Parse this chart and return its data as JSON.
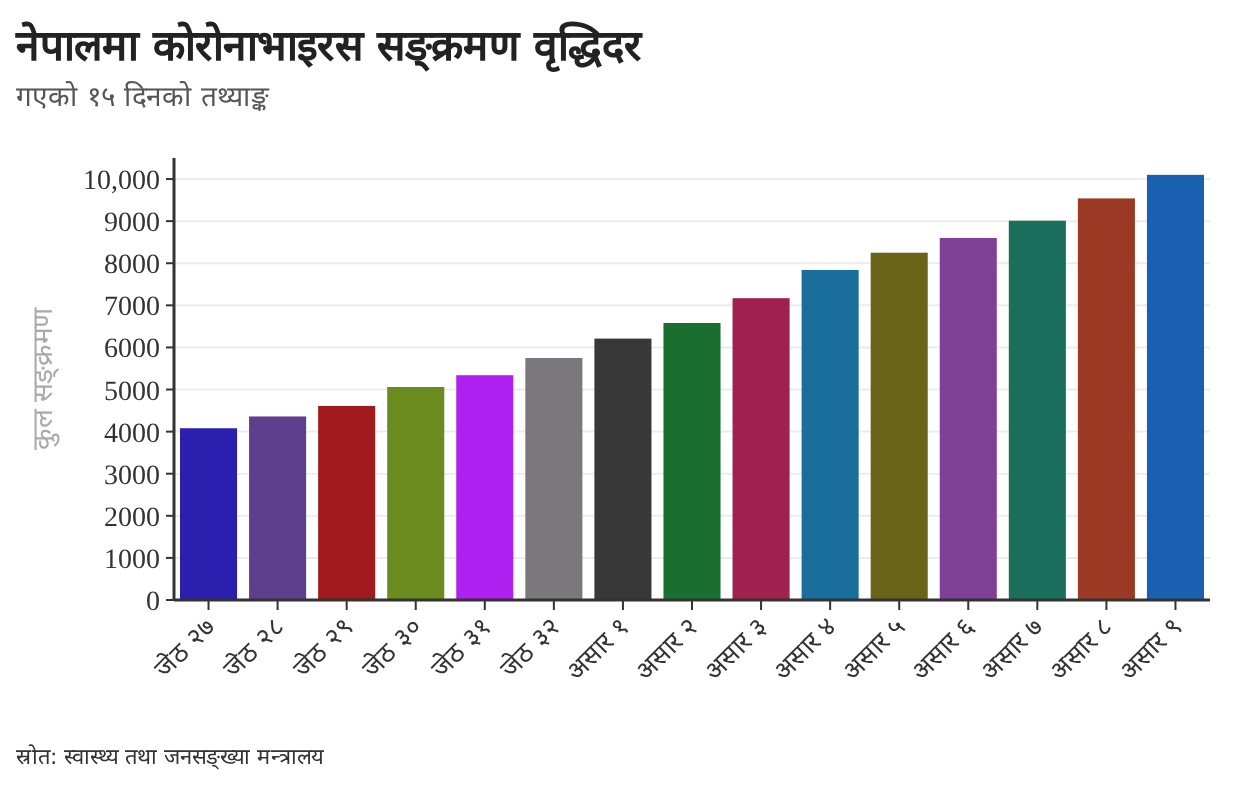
{
  "chart_data": {
    "type": "bar",
    "title": "नेपालमा कोरोनाभाइरस सङ्क्रमण वृद्धिदर",
    "subtitle": "गएको १५ दिनको तथ्याङ्क",
    "ylabel": "कुल सङ्क्रमण",
    "annotations": [
      "स्रोत: स्वास्थ्य तथा जनसङ्ख्या मन्त्रालय"
    ],
    "categories": [
      "जेठ २७",
      "जेठ २८",
      "जेठ २९",
      "जेठ ३०",
      "जेठ ३१",
      "जेठ ३२",
      "असार १",
      "असार २",
      "असार ३",
      "असार ४",
      "असार ५",
      "असार ६",
      "असार ७",
      "असार ८",
      "असार ९"
    ],
    "values": [
      4080,
      4360,
      4610,
      5060,
      5340,
      5750,
      6210,
      6580,
      7170,
      7840,
      8250,
      8600,
      9010,
      9540,
      10100
    ],
    "colors": [
      "#2a1fae",
      "#5e3f8c",
      "#a01a1e",
      "#6a8c1e",
      "#b020f0",
      "#7a787c",
      "#383838",
      "#1a6e30",
      "#a0204e",
      "#1a6e9c",
      "#6a6418",
      "#804095",
      "#1a6e5c",
      "#9a3a24",
      "#1a60b0"
    ],
    "ylim": [
      0,
      10500
    ],
    "yticks": [
      0,
      1000,
      2000,
      3000,
      4000,
      5000,
      6000,
      7000,
      8000,
      9000,
      {
        "value": 10000,
        "label": "10,000"
      }
    ],
    "grid": "y"
  }
}
